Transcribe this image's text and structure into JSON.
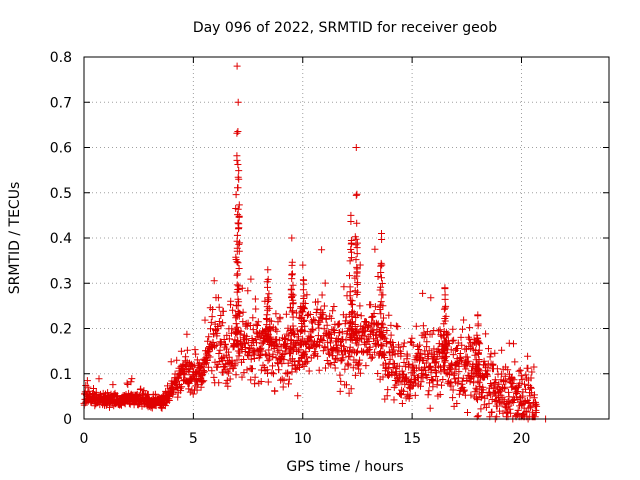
{
  "chart_data": {
    "type": "scatter",
    "title": "Day 096 of 2022, SRMTID for receiver geob",
    "xlabel": "GPS time / hours",
    "ylabel": "SRMTID / TECUs",
    "xlim": [
      0,
      24
    ],
    "ylim": [
      0,
      0.8
    ],
    "xticks": [
      0,
      5,
      10,
      15,
      20
    ],
    "xtick_labels": [
      "0",
      "5",
      "10",
      "15",
      "20"
    ],
    "yticks": [
      0,
      0.1,
      0.2,
      0.3,
      0.4,
      0.5,
      0.6,
      0.7,
      0.8
    ],
    "ytick_labels": [
      "0",
      "0.1",
      "0.2",
      "0.3",
      "0.4",
      "0.5",
      "0.6",
      "0.7",
      "0.8"
    ],
    "grid": true,
    "marker": "plus",
    "color": "#e00000",
    "trend": [
      [
        0.0,
        0.045
      ],
      [
        0.5,
        0.045
      ],
      [
        1.0,
        0.04
      ],
      [
        1.5,
        0.04
      ],
      [
        2.0,
        0.045
      ],
      [
        2.5,
        0.045
      ],
      [
        3.0,
        0.04
      ],
      [
        3.5,
        0.035
      ],
      [
        4.0,
        0.06
      ],
      [
        4.3,
        0.09
      ],
      [
        4.8,
        0.1
      ],
      [
        5.0,
        0.09
      ],
      [
        5.5,
        0.11
      ],
      [
        5.8,
        0.16
      ],
      [
        6.2,
        0.18
      ],
      [
        6.5,
        0.15
      ],
      [
        6.8,
        0.14
      ],
      [
        7.0,
        0.16
      ],
      [
        7.3,
        0.17
      ],
      [
        7.8,
        0.15
      ],
      [
        8.3,
        0.17
      ],
      [
        8.8,
        0.14
      ],
      [
        9.3,
        0.14
      ],
      [
        9.8,
        0.16
      ],
      [
        10.3,
        0.17
      ],
      [
        10.8,
        0.19
      ],
      [
        11.3,
        0.18
      ],
      [
        11.8,
        0.15
      ],
      [
        12.3,
        0.16
      ],
      [
        12.8,
        0.18
      ],
      [
        13.3,
        0.19
      ],
      [
        13.8,
        0.12
      ],
      [
        14.3,
        0.11
      ],
      [
        14.8,
        0.1
      ],
      [
        15.3,
        0.11
      ],
      [
        15.8,
        0.12
      ],
      [
        16.3,
        0.14
      ],
      [
        16.8,
        0.12
      ],
      [
        17.3,
        0.11
      ],
      [
        17.8,
        0.1
      ],
      [
        18.3,
        0.08
      ],
      [
        18.8,
        0.07
      ],
      [
        19.3,
        0.07
      ],
      [
        19.7,
        0.05
      ],
      [
        20.0,
        0.04
      ],
      [
        20.5,
        0.03
      ],
      [
        20.7,
        0.03
      ]
    ],
    "spikes": [
      {
        "x": 7.0,
        "peak": 0.78,
        "width": 0.15
      },
      {
        "x": 7.05,
        "peak": 0.7,
        "width": 0.12
      },
      {
        "x": 8.4,
        "peak": 0.33,
        "width": 0.2
      },
      {
        "x": 9.5,
        "peak": 0.4,
        "width": 0.15
      },
      {
        "x": 10.0,
        "peak": 0.34,
        "width": 0.2
      },
      {
        "x": 12.2,
        "peak": 0.45,
        "width": 0.15
      },
      {
        "x": 12.45,
        "peak": 0.6,
        "width": 0.12
      },
      {
        "x": 13.6,
        "peak": 0.41,
        "width": 0.15
      },
      {
        "x": 16.5,
        "peak": 0.29,
        "width": 0.15
      },
      {
        "x": 18.0,
        "peak": 0.23,
        "width": 0.15
      }
    ],
    "baseline_points": [
      [
        18.8,
        0.0
      ],
      [
        19.6,
        0.0
      ],
      [
        20.3,
        0.0
      ],
      [
        21.1,
        0.0
      ]
    ]
  }
}
